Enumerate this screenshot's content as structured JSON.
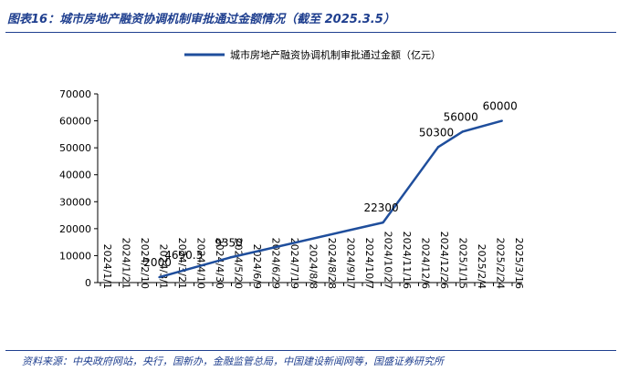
{
  "header": {
    "title": "图表16：城市房地产融资协调机制审批通过金额情况（截至 2025.3.5）"
  },
  "footer": {
    "source": "资料来源：中央政府网站，央行，国新办，金融监管总局，中国建设新闻网等，国盛证券研究所"
  },
  "chart_data": {
    "type": "line",
    "title": "",
    "xlabel": "",
    "ylabel": "",
    "ylim": [
      0,
      70000
    ],
    "yticks": [
      0,
      10000,
      20000,
      30000,
      40000,
      50000,
      60000,
      70000
    ],
    "xtick_labels": [
      "2024/1/1",
      "2024/1/21",
      "2024/2/10",
      "2024/3/1",
      "2024/3/21",
      "2024/4/10",
      "2024/4/30",
      "2024/5/20",
      "2024/6/9",
      "2024/6/29",
      "2024/7/19",
      "2024/8/8",
      "2024/8/28",
      "2024/9/17",
      "2024/10/7",
      "2024/10/27",
      "2024/11/16",
      "2024/12/6",
      "2024/12/26",
      "2025/1/15",
      "2025/2/4",
      "2025/2/24",
      "2025/3/16"
    ],
    "legend_position": "top-center",
    "grid": false,
    "color": "#1f4e9c",
    "series": [
      {
        "name": "城市房地产融资协调机制审批通过金额（亿元）",
        "points": [
          {
            "x": "2024/3/4",
            "y": 2000,
            "label": "2000"
          },
          {
            "x": "2024/4/1",
            "y": 4690.3,
            "label": "4690.3"
          },
          {
            "x": "2024/5/19",
            "y": 9350,
            "label": "9350"
          },
          {
            "x": "2024/10/29",
            "y": 22300,
            "label": "22300"
          },
          {
            "x": "2024/12/27",
            "y": 50300,
            "label": "50300"
          },
          {
            "x": "2025/1/22",
            "y": 56000,
            "label": "56000"
          },
          {
            "x": "2025/3/5",
            "y": 60000,
            "label": "60000"
          }
        ]
      }
    ]
  }
}
